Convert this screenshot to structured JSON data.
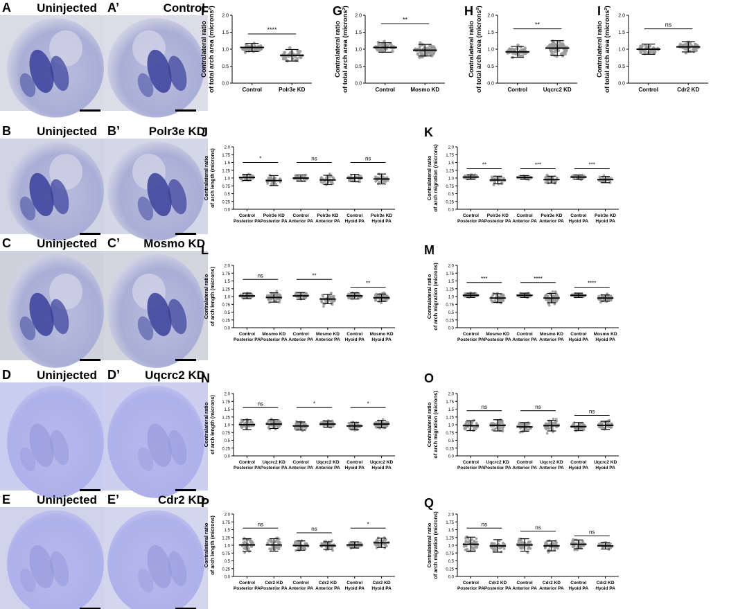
{
  "images": [
    {
      "key": "A",
      "label": "A",
      "title": "Uninjected",
      "bg": "#d9dbe6"
    },
    {
      "key": "A2",
      "label": "A’",
      "title": "Control",
      "bg": "#dcdde8"
    },
    {
      "key": "B",
      "label": "B",
      "title": "Uninjected",
      "bg": "#cfd4e2"
    },
    {
      "key": "B2",
      "label": "B’",
      "title": "Polr3e KD",
      "bg": "#d4d8e6"
    },
    {
      "key": "C",
      "label": "C",
      "title": "Uninjected",
      "bg": "#cfd2dc"
    },
    {
      "key": "C2",
      "label": "C’",
      "title": "Mosmo KD",
      "bg": "#d2d4de"
    },
    {
      "key": "D",
      "label": "D",
      "title": "Uninjected",
      "bg": "#c9cdef"
    },
    {
      "key": "D2",
      "label": "D’",
      "title": "Uqcrc2 KD",
      "bg": "#ccd0ee"
    },
    {
      "key": "E",
      "label": "E",
      "title": "Uninjected",
      "bg": "#d0d2ec"
    },
    {
      "key": "E2",
      "label": "E’",
      "title": "Cdr2 KD",
      "bg": "#d4d6ee"
    }
  ],
  "chart_data": [
    {
      "panel": "F",
      "type": "scatter",
      "ylabel": "Contralateral ratio of total arch area (microns²)",
      "ylim": [
        0,
        2.0
      ],
      "yticks": [
        "0.0",
        "0.5",
        "1.0",
        "1.5",
        "2.0"
      ],
      "categories": [
        "Control",
        "Polr3e KD"
      ],
      "means": [
        1.05,
        0.82
      ],
      "sds": [
        0.12,
        0.17
      ],
      "spreads": [
        0.18,
        0.24
      ],
      "n": [
        40,
        40
      ],
      "comparisons": [
        {
          "from": 0,
          "to": 1,
          "label": "****",
          "y": 1.45
        }
      ]
    },
    {
      "panel": "G",
      "type": "scatter",
      "ylabel": "Contralateral ratio of total arch area (microns²)",
      "ylim": [
        0,
        2.0
      ],
      "yticks": [
        "0.0",
        "0.5",
        "1.0",
        "1.5",
        "2.0"
      ],
      "categories": [
        "Control",
        "Mosmo KD"
      ],
      "means": [
        1.05,
        0.97
      ],
      "sds": [
        0.14,
        0.17
      ],
      "spreads": [
        0.2,
        0.3
      ],
      "n": [
        40,
        60
      ],
      "comparisons": [
        {
          "from": 0,
          "to": 1,
          "label": "**",
          "y": 1.75
        }
      ]
    },
    {
      "panel": "H",
      "type": "scatter",
      "ylabel": "Contralateral ratio of total arch area (microns²)",
      "ylim": [
        0,
        2.0
      ],
      "yticks": [
        "0.0",
        "0.5",
        "1.0",
        "1.5",
        "2.0"
      ],
      "categories": [
        "Control",
        "Uqcrc2 KD"
      ],
      "means": [
        0.92,
        1.03
      ],
      "sds": [
        0.16,
        0.22
      ],
      "spreads": [
        0.25,
        0.3
      ],
      "n": [
        45,
        60
      ],
      "comparisons": [
        {
          "from": 0,
          "to": 1,
          "label": "**",
          "y": 1.6
        }
      ]
    },
    {
      "panel": "I",
      "type": "scatter",
      "ylabel": "Contralateral ratio of total arch area (microns²)",
      "ylim": [
        0,
        2.0
      ],
      "yticks": [
        "0.0",
        "0.5",
        "1.0",
        "1.5",
        "2.0"
      ],
      "categories": [
        "Control",
        "Cdr2 KD"
      ],
      "means": [
        1.0,
        1.07
      ],
      "sds": [
        0.15,
        0.15
      ],
      "spreads": [
        0.22,
        0.22
      ],
      "n": [
        40,
        40
      ],
      "comparisons": [
        {
          "from": 0,
          "to": 1,
          "label": "ns",
          "y": 1.6
        }
      ]
    },
    {
      "panel": "J",
      "type": "scatter",
      "ylabel": "Contralateral ratio of arch length (microns)",
      "ylim": [
        0,
        2.0
      ],
      "yticks": [
        "0.0",
        "0.25",
        "0.5",
        "0.75",
        "1.0",
        "1.25",
        "1.5",
        "1.75",
        "2.0"
      ],
      "categories": [
        "Control Posterior PA",
        "Polr3e KD Posterior PA",
        "Control Anterior PA",
        "Polr3e KD Anterior PA",
        "Control Hyoid PA",
        "Polr3e KD Hyoid PA"
      ],
      "means": [
        1.02,
        0.92,
        1.0,
        0.94,
        1.0,
        0.97
      ],
      "sds": [
        0.1,
        0.16,
        0.1,
        0.15,
        0.12,
        0.16
      ],
      "spreads": [
        0.14,
        0.25,
        0.14,
        0.24,
        0.17,
        0.25
      ],
      "n": [
        30,
        30,
        30,
        30,
        30,
        30
      ],
      "comparisons": [
        {
          "from": 0,
          "to": 1,
          "label": "*",
          "y": 1.5
        },
        {
          "from": 2,
          "to": 3,
          "label": "ns",
          "y": 1.5
        },
        {
          "from": 4,
          "to": 5,
          "label": "ns",
          "y": 1.5
        }
      ]
    },
    {
      "panel": "K",
      "type": "scatter",
      "ylabel": "Contralateral ratio of arch migration (microns)",
      "ylim": [
        0,
        2.0
      ],
      "yticks": [
        "0.0",
        "0.25",
        "0.5",
        "0.75",
        "1.0",
        "1.25",
        "1.5",
        "1.75",
        "2.0"
      ],
      "categories": [
        "Control Posterior PA",
        "Polr3e KD Posterior PA",
        "Control Anterior PA",
        "Polr3e KD Anterior PA",
        "Control Hyoid PA",
        "Polr3e KD Hyoid PA"
      ],
      "means": [
        1.03,
        0.94,
        1.02,
        0.95,
        1.03,
        0.95
      ],
      "sds": [
        0.07,
        0.12,
        0.06,
        0.11,
        0.07,
        0.1
      ],
      "spreads": [
        0.1,
        0.2,
        0.1,
        0.2,
        0.1,
        0.18
      ],
      "n": [
        30,
        30,
        30,
        30,
        30,
        30
      ],
      "comparisons": [
        {
          "from": 0,
          "to": 1,
          "label": "**",
          "y": 1.3
        },
        {
          "from": 2,
          "to": 3,
          "label": "***",
          "y": 1.3
        },
        {
          "from": 4,
          "to": 5,
          "label": "***",
          "y": 1.3
        }
      ]
    },
    {
      "panel": "L",
      "type": "scatter",
      "ylabel": "Contralateral ratio of arch length (microns)",
      "ylim": [
        0,
        2.0
      ],
      "yticks": [
        "0.0",
        "0.25",
        "0.5",
        "0.75",
        "1.0",
        "1.25",
        "1.5",
        "1.75",
        "2.0"
      ],
      "categories": [
        "Control Posterior PA",
        "Mosmo KD Posterior PA",
        "Control Anterior PA",
        "Mosmo KD Anterior PA",
        "Control Hyoid PA",
        "Mosmo KD Hyoid PA"
      ],
      "means": [
        1.02,
        0.97,
        1.02,
        0.92,
        1.02,
        0.96
      ],
      "sds": [
        0.09,
        0.15,
        0.11,
        0.15,
        0.1,
        0.12
      ],
      "spreads": [
        0.12,
        0.25,
        0.15,
        0.26,
        0.14,
        0.2
      ],
      "n": [
        40,
        50,
        40,
        50,
        40,
        50
      ],
      "comparisons": [
        {
          "from": 0,
          "to": 1,
          "label": "ns",
          "y": 1.55
        },
        {
          "from": 2,
          "to": 3,
          "label": "**",
          "y": 1.55
        },
        {
          "from": 4,
          "to": 5,
          "label": "**",
          "y": 1.3
        }
      ]
    },
    {
      "panel": "M",
      "type": "scatter",
      "ylabel": "Contralateral ratio of arch migration (microns)",
      "ylim": [
        0,
        2.0
      ],
      "yticks": [
        "0.0",
        "0.25",
        "0.5",
        "0.75",
        "1.0",
        "1.25",
        "1.5",
        "1.75",
        "2.0"
      ],
      "categories": [
        "Control Posterior PA",
        "Mosmo KD Posterior PA",
        "Control Anterior PA",
        "Mosmo KD Anterior PA",
        "Control Hyoid PA",
        "Mosmo KD Hyoid PA"
      ],
      "means": [
        1.04,
        0.95,
        1.04,
        0.95,
        1.04,
        0.95
      ],
      "sds": [
        0.07,
        0.14,
        0.07,
        0.15,
        0.07,
        0.1
      ],
      "spreads": [
        0.1,
        0.25,
        0.1,
        0.25,
        0.1,
        0.18
      ],
      "n": [
        40,
        50,
        40,
        50,
        40,
        40
      ],
      "comparisons": [
        {
          "from": 0,
          "to": 1,
          "label": "***",
          "y": 1.45
        },
        {
          "from": 2,
          "to": 3,
          "label": "****",
          "y": 1.45
        },
        {
          "from": 4,
          "to": 5,
          "label": "****",
          "y": 1.3
        }
      ]
    },
    {
      "panel": "N",
      "type": "scatter",
      "ylabel": "Contralateral ratio of arch length (microns)",
      "ylim": [
        0,
        2.0
      ],
      "yticks": [
        "0.0",
        "0.25",
        "0.5",
        "0.75",
        "1.0",
        "1.25",
        "1.5",
        "1.75",
        "2.0"
      ],
      "categories": [
        "Control Posterior PA",
        "Uqcrc2 KD Posterior PA",
        "Control Anterior PA",
        "Uqcrc2 KD Anterior PA",
        "Control Hyoid PA",
        "Uqcrc2 KD Hyoid PA"
      ],
      "means": [
        1.0,
        1.02,
        0.96,
        1.02,
        0.96,
        1.02
      ],
      "sds": [
        0.16,
        0.14,
        0.13,
        0.1,
        0.12,
        0.12
      ],
      "spreads": [
        0.24,
        0.22,
        0.2,
        0.16,
        0.18,
        0.18
      ],
      "n": [
        50,
        50,
        40,
        50,
        40,
        50
      ],
      "comparisons": [
        {
          "from": 0,
          "to": 1,
          "label": "ns",
          "y": 1.55
        },
        {
          "from": 2,
          "to": 3,
          "label": "*",
          "y": 1.55
        },
        {
          "from": 4,
          "to": 5,
          "label": "*",
          "y": 1.55
        }
      ]
    },
    {
      "panel": "O",
      "type": "scatter",
      "ylabel": "Contralateral ratio of arch migration (microns)",
      "ylim": [
        0,
        2.0
      ],
      "yticks": [
        "0.0",
        "0.25",
        "0.5",
        "0.75",
        "1.0",
        "1.25",
        "1.5",
        "1.75",
        "2.0"
      ],
      "categories": [
        "Control Posterior PA",
        "Uqcrc2 KD Posterior PA",
        "Control Anterior PA",
        "Uqcrc2 KD Anterior PA",
        "Control Hyoid PA",
        "Uqcrc2 KD Hyoid PA"
      ],
      "means": [
        0.97,
        0.98,
        0.93,
        0.97,
        0.94,
        0.98
      ],
      "sds": [
        0.16,
        0.18,
        0.14,
        0.17,
        0.13,
        0.13
      ],
      "spreads": [
        0.24,
        0.27,
        0.22,
        0.26,
        0.2,
        0.2
      ],
      "n": [
        40,
        50,
        40,
        50,
        40,
        40
      ],
      "comparisons": [
        {
          "from": 0,
          "to": 1,
          "label": "ns",
          "y": 1.45
        },
        {
          "from": 2,
          "to": 3,
          "label": "ns",
          "y": 1.45
        },
        {
          "from": 4,
          "to": 5,
          "label": "ns",
          "y": 1.3
        }
      ]
    },
    {
      "panel": "P",
      "type": "scatter",
      "ylabel": "Contralateral ratio of arch length (microns)",
      "ylim": [
        0,
        2.0
      ],
      "yticks": [
        "0.0",
        "0.25",
        "0.5",
        "0.75",
        "1.0",
        "1.25",
        "1.5",
        "1.75",
        "2.0"
      ],
      "categories": [
        "Control Posterior PA",
        "Cdr2 KD Posterior PA",
        "Control Anterior PA",
        "Cdr2 KD Anterior PA",
        "Control Hyoid PA",
        "Cdr2 KD Hyoid PA"
      ],
      "means": [
        1.01,
        1.01,
        0.99,
        0.99,
        1.01,
        1.08
      ],
      "sds": [
        0.2,
        0.2,
        0.15,
        0.12,
        0.1,
        0.15
      ],
      "spreads": [
        0.3,
        0.3,
        0.23,
        0.2,
        0.15,
        0.24
      ],
      "n": [
        40,
        40,
        40,
        40,
        40,
        40
      ],
      "comparisons": [
        {
          "from": 0,
          "to": 1,
          "label": "ns",
          "y": 1.55
        },
        {
          "from": 2,
          "to": 3,
          "label": "ns",
          "y": 1.4
        },
        {
          "from": 4,
          "to": 5,
          "label": "*",
          "y": 1.55
        }
      ]
    },
    {
      "panel": "Q",
      "type": "scatter",
      "ylabel": "Contralateral ratio of arch migration (microns)",
      "ylim": [
        0,
        2.0
      ],
      "yticks": [
        "0.0",
        "0.25",
        "0.5",
        "0.75",
        "1.0",
        "1.25",
        "1.5",
        "1.75",
        "2.0"
      ],
      "categories": [
        "Control Posterior PA",
        "Cdr2 KD Posterior PA",
        "Control Anterior PA",
        "Cdr2 KD Anterior PA",
        "Control Hyoid PA",
        "Cdr2 KD Hyoid PA"
      ],
      "means": [
        1.03,
        0.98,
        1.01,
        0.98,
        1.03,
        0.98
      ],
      "sds": [
        0.23,
        0.2,
        0.2,
        0.16,
        0.14,
        0.1
      ],
      "spreads": [
        0.33,
        0.3,
        0.3,
        0.25,
        0.22,
        0.15
      ],
      "n": [
        45,
        40,
        45,
        40,
        40,
        30
      ],
      "comparisons": [
        {
          "from": 0,
          "to": 1,
          "label": "ns",
          "y": 1.55
        },
        {
          "from": 2,
          "to": 3,
          "label": "ns",
          "y": 1.45
        },
        {
          "from": 4,
          "to": 5,
          "label": "ns",
          "y": 1.3
        }
      ]
    }
  ]
}
